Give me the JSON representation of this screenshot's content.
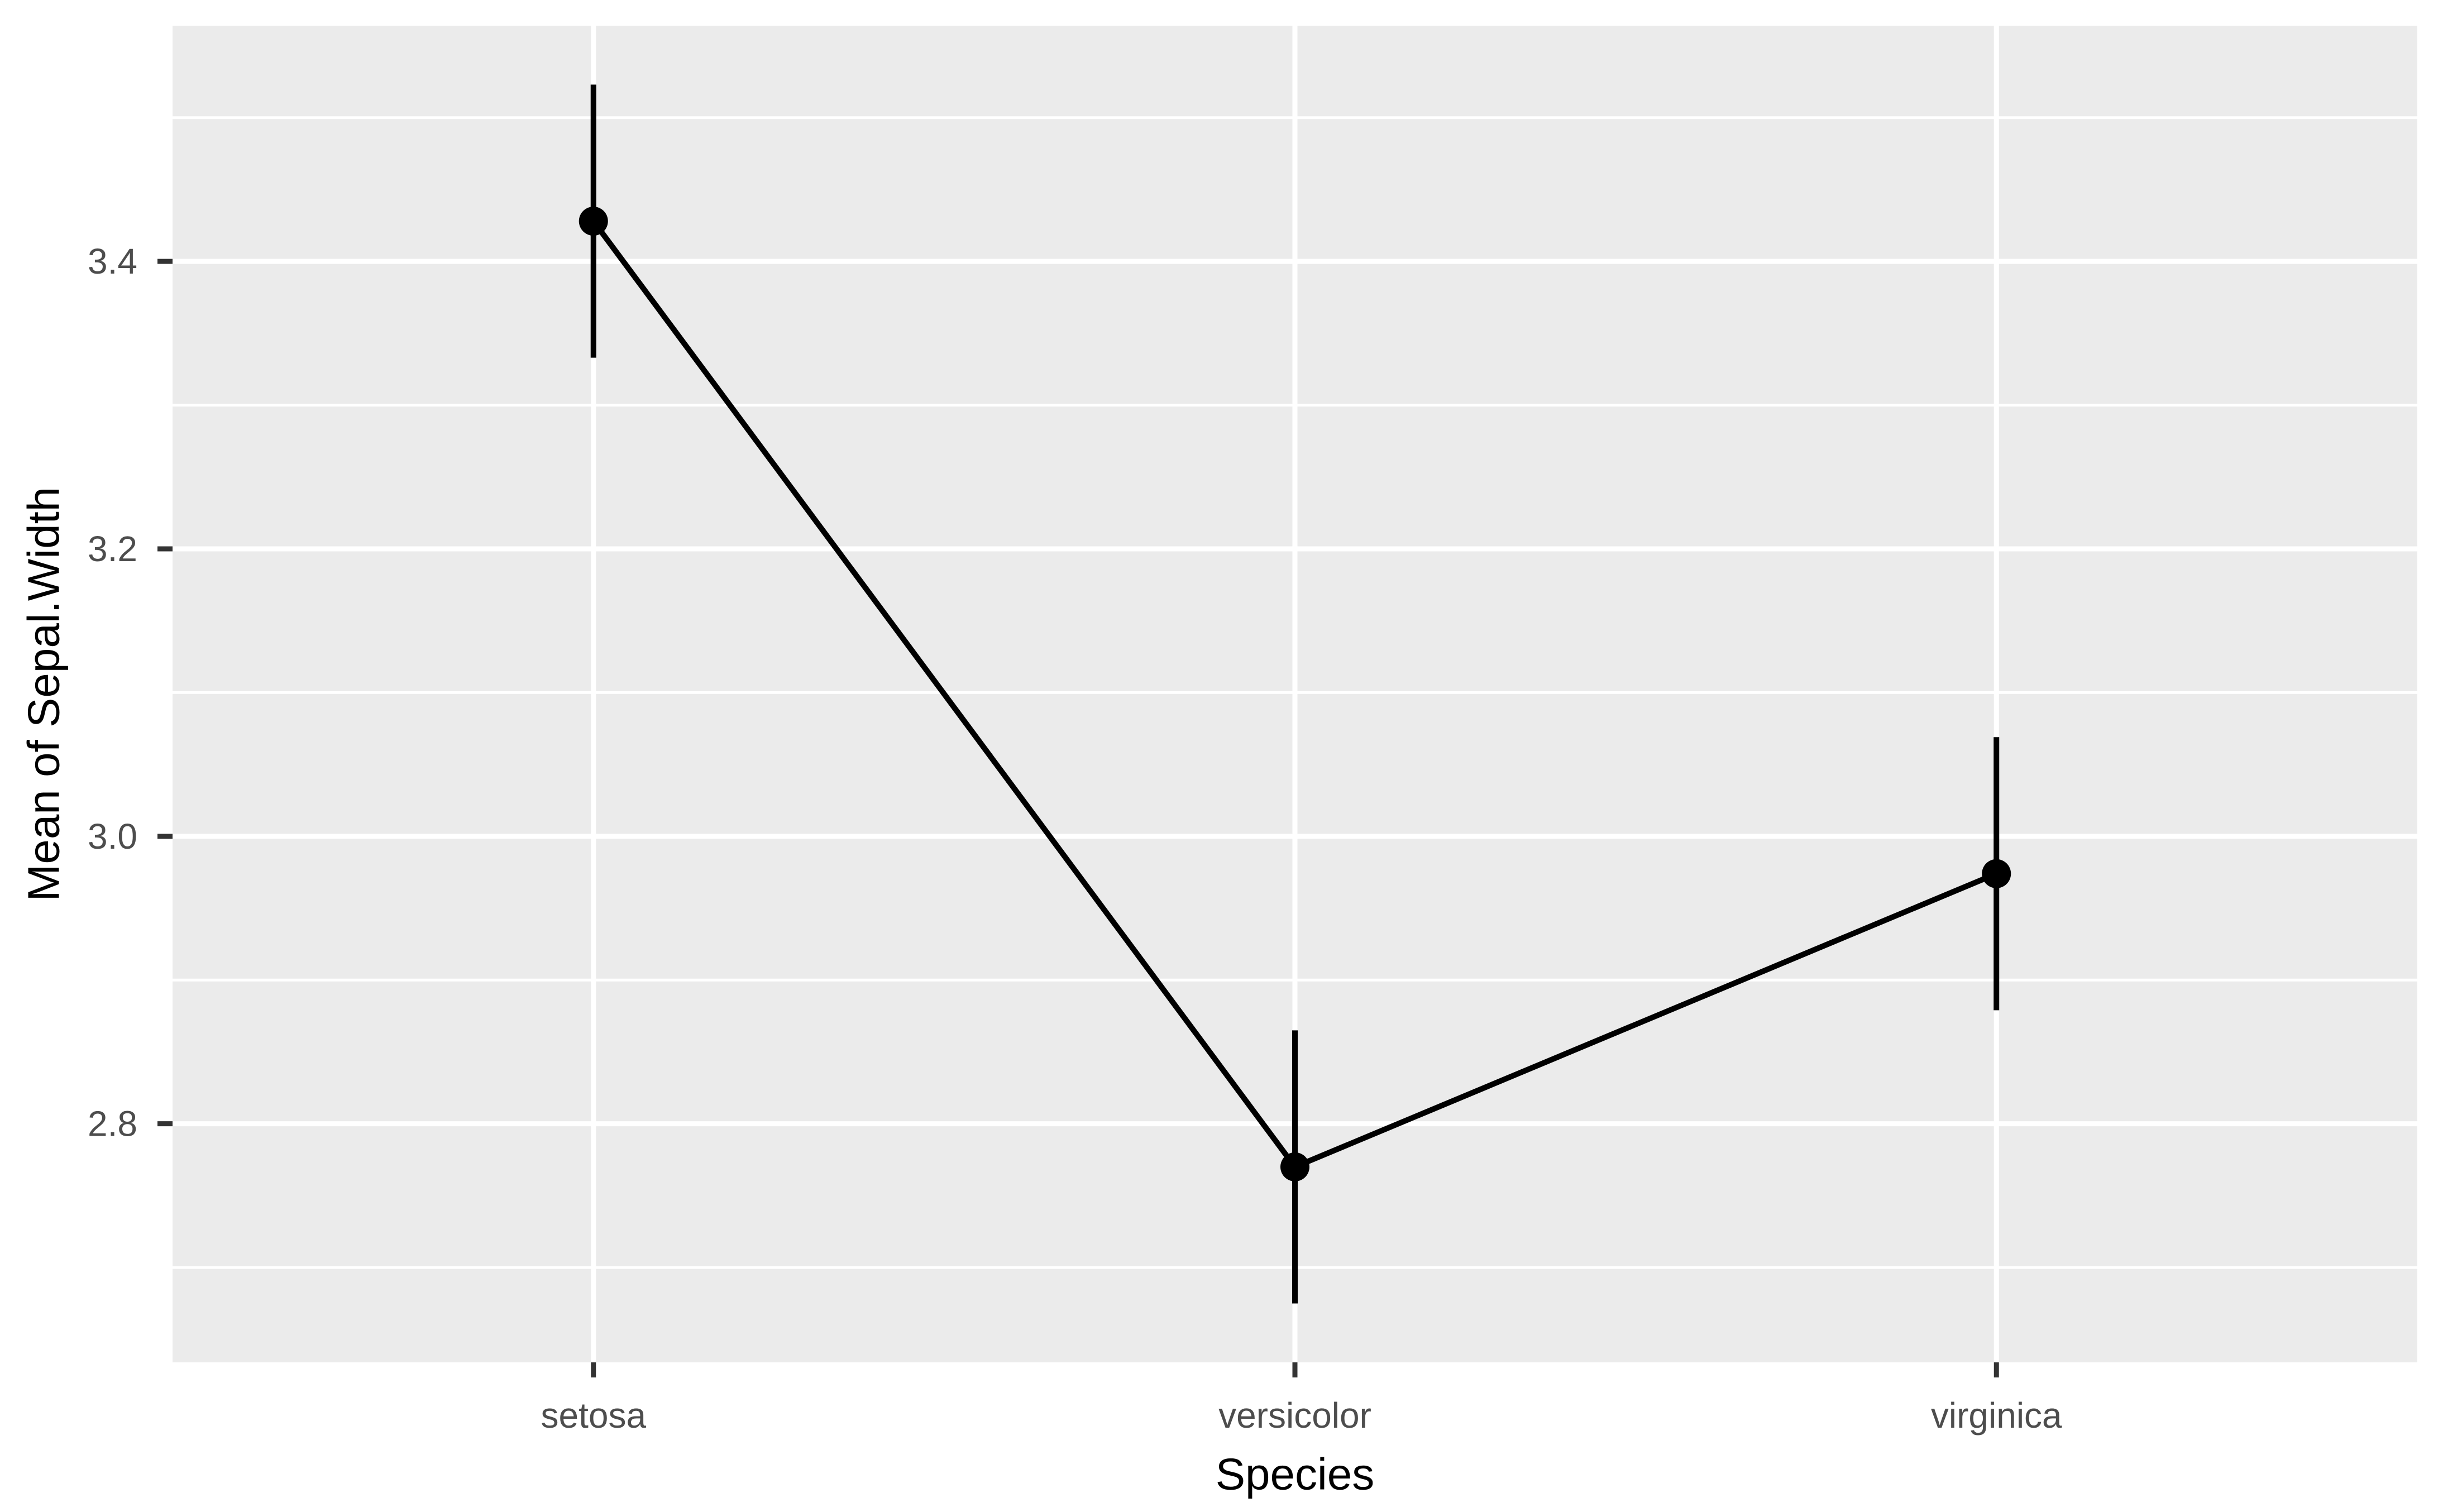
{
  "chart_data": {
    "type": "line",
    "title": "",
    "xlabel": "Species",
    "ylabel": "Mean of Sepal.Width",
    "categories": [
      "setosa",
      "versicolor",
      "virginica"
    ],
    "series": [
      {
        "name": "Mean of Sepal.Width",
        "values": [
          3.428,
          2.77,
          2.974
        ],
        "ci_low": [
          3.333,
          2.675,
          2.879
        ],
        "ci_high": [
          3.523,
          2.865,
          3.069
        ]
      }
    ],
    "x_axis": {
      "label": "Species",
      "tick_labels": [
        "setosa",
        "versicolor",
        "virginica"
      ]
    },
    "y_axis": {
      "label": "Mean of Sepal.Width",
      "tick_values": [
        2.8,
        3.0,
        3.2,
        3.4
      ],
      "tick_labels": [
        "2.8",
        "3.0",
        "3.2",
        "3.4"
      ],
      "minor_tick_values": [
        2.7,
        2.9,
        3.1,
        3.3,
        3.5
      ],
      "range": [
        2.634,
        3.564
      ]
    },
    "grid": "white major and minor horizontal gridlines, white vertical gridlines at categories, on gray panel",
    "legend": "none",
    "error_bars": "vertical 95% CI bars without caps",
    "point_style": "filled black circle connected by straight line segments"
  },
  "style": {
    "panel_bg": "#EBEBEB",
    "outer_bg": "#FFFFFF",
    "gridline_color": "#FFFFFF",
    "series_color": "#000000",
    "tick_mark_color": "#333333",
    "tick_label_color": "#4D4D4D",
    "axis_title_color": "#000000"
  }
}
